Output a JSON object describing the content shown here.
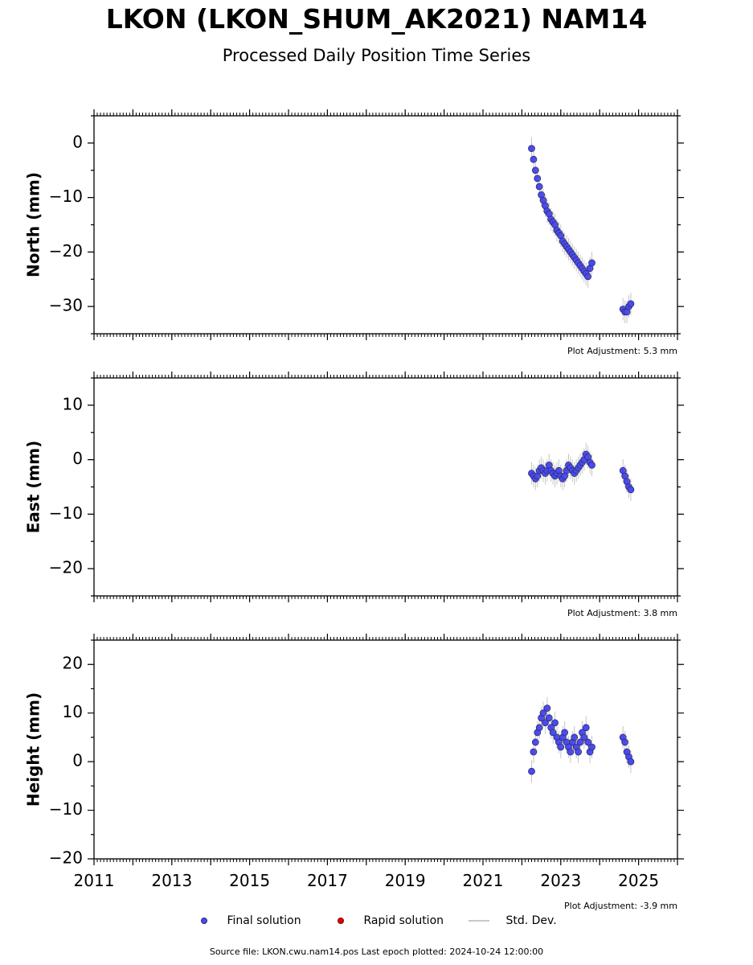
{
  "header": {
    "title": "LKON (LKON_SHUM_AK2021) NAM14",
    "subtitle": "Processed Daily Position Time Series"
  },
  "legend": {
    "final": "Final solution",
    "rapid": "Rapid solution",
    "std": "Std. Dev."
  },
  "footer": "Source file: LKON.cwu.nam14.pos  Last epoch plotted: 2024-10-24 12:00:00",
  "colors": {
    "final_fill": "#4a4af0",
    "final_edge": "#2a2a70",
    "rapid_fill": "#e00000",
    "std_line": "#808080"
  },
  "chart_data": [
    {
      "type": "scatter",
      "ylabel": "North (mm)",
      "xlim": [
        2011,
        2026
      ],
      "ylim": [
        -35,
        5
      ],
      "yticks": [
        0,
        -10,
        -20,
        -30
      ],
      "ytick_labels": [
        "0",
        "−10",
        "−20",
        "−30"
      ],
      "adjustment": "Plot Adjustment: 5.3 mm",
      "show_xtick_labels": false,
      "series": [
        {
          "x": [
            2022.25,
            2022.3,
            2022.35,
            2022.4,
            2022.45,
            2022.5,
            2022.55,
            2022.6,
            2022.65,
            2022.7,
            2022.75,
            2022.8,
            2022.85,
            2022.9,
            2022.95,
            2023.0,
            2023.05,
            2023.1,
            2023.15,
            2023.2,
            2023.25,
            2023.3,
            2023.35,
            2023.4,
            2023.45,
            2023.5,
            2023.55,
            2023.6,
            2023.65,
            2023.7,
            2023.75,
            2023.8,
            2024.6,
            2024.65,
            2024.7,
            2024.75,
            2024.8
          ],
          "y": [
            -1,
            -3,
            -5,
            -6.5,
            -8,
            -9.5,
            -10.5,
            -11.5,
            -12.5,
            -13,
            -14,
            -14.5,
            -15,
            -16,
            -16.5,
            -17,
            -18,
            -18.5,
            -19,
            -19.5,
            -20,
            -20.5,
            -21,
            -21.5,
            -22,
            -22.5,
            -23,
            -23.5,
            -24,
            -24.5,
            -23,
            -22,
            -30.5,
            -31,
            -31,
            -30,
            -29.5
          ]
        }
      ]
    },
    {
      "type": "scatter",
      "ylabel": "East (mm)",
      "xlim": [
        2011,
        2026
      ],
      "ylim": [
        -25,
        15
      ],
      "yticks": [
        10,
        0,
        -10,
        -20
      ],
      "ytick_labels": [
        "10",
        "0",
        "−10",
        "−20"
      ],
      "adjustment": "Plot Adjustment: 3.8 mm",
      "show_xtick_labels": false,
      "series": [
        {
          "x": [
            2022.25,
            2022.3,
            2022.35,
            2022.4,
            2022.45,
            2022.5,
            2022.55,
            2022.6,
            2022.65,
            2022.7,
            2022.75,
            2022.8,
            2022.85,
            2022.9,
            2022.95,
            2023.0,
            2023.05,
            2023.1,
            2023.15,
            2023.2,
            2023.25,
            2023.3,
            2023.35,
            2023.4,
            2023.45,
            2023.5,
            2023.55,
            2023.6,
            2023.65,
            2023.7,
            2023.75,
            2023.8,
            2024.6,
            2024.65,
            2024.7,
            2024.75,
            2024.8
          ],
          "y": [
            -2.5,
            -3,
            -3.5,
            -3,
            -2,
            -1.5,
            -2,
            -2.5,
            -2,
            -1,
            -2,
            -2.5,
            -3,
            -2.5,
            -2,
            -3,
            -3.5,
            -3,
            -2,
            -1,
            -1.5,
            -2,
            -2.5,
            -2,
            -1.5,
            -1,
            -0.5,
            0,
            1,
            0.5,
            -0.5,
            -1,
            -2,
            -3,
            -4,
            -5,
            -5.5
          ]
        }
      ]
    },
    {
      "type": "scatter",
      "ylabel": "Height (mm)",
      "xlim": [
        2011,
        2026
      ],
      "ylim": [
        -20,
        25
      ],
      "yticks": [
        20,
        10,
        0,
        -10,
        -20
      ],
      "ytick_labels": [
        "20",
        "10",
        "0",
        "−10",
        "−20"
      ],
      "xticks": [
        2011,
        2013,
        2015,
        2017,
        2019,
        2021,
        2023,
        2025
      ],
      "xtick_labels": [
        "2011",
        "2013",
        "2015",
        "2017",
        "2019",
        "2021",
        "2023",
        "2025"
      ],
      "adjustment": "Plot Adjustment: -3.9 mm",
      "show_xtick_labels": true,
      "series": [
        {
          "x": [
            2022.25,
            2022.3,
            2022.35,
            2022.4,
            2022.45,
            2022.5,
            2022.55,
            2022.6,
            2022.65,
            2022.7,
            2022.75,
            2022.8,
            2022.85,
            2022.9,
            2022.95,
            2023.0,
            2023.05,
            2023.1,
            2023.15,
            2023.2,
            2023.25,
            2023.3,
            2023.35,
            2023.4,
            2023.45,
            2023.5,
            2023.55,
            2023.6,
            2023.65,
            2023.7,
            2023.75,
            2023.8,
            2024.6,
            2024.65,
            2024.7,
            2024.75,
            2024.8
          ],
          "y": [
            -2,
            2,
            4,
            6,
            7,
            9,
            10,
            8,
            11,
            9,
            7,
            6,
            8,
            5,
            4,
            3,
            5,
            6,
            4,
            3,
            2,
            4,
            5,
            3,
            2,
            4,
            6,
            5,
            7,
            4,
            2,
            3,
            5,
            4,
            2,
            1,
            0
          ]
        }
      ]
    }
  ]
}
